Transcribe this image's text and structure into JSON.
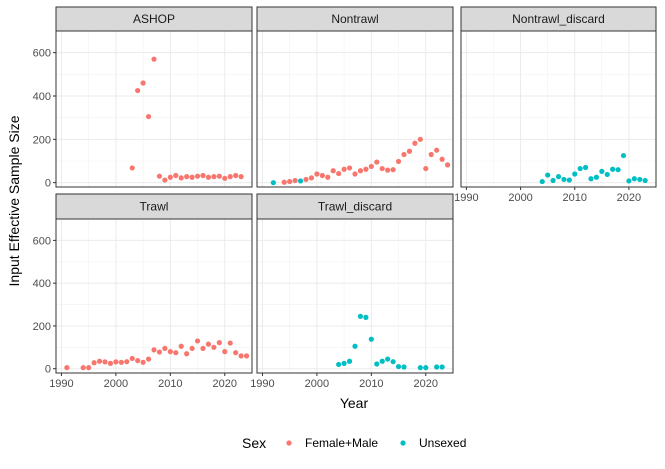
{
  "chart_data": {
    "type": "scatter",
    "xlabel": "Year",
    "ylabel": "Input Effective Sample Size",
    "xlim": [
      1989,
      2025
    ],
    "ylim": [
      -20,
      700
    ],
    "x_ticks": [
      1990,
      2000,
      2010,
      2020
    ],
    "y_ticks": [
      0,
      200,
      400,
      600
    ],
    "grid": true,
    "legend": {
      "title": "Sex",
      "position": "bottom",
      "entries": [
        {
          "name": "Female+Male",
          "color": "#F8766D"
        },
        {
          "name": "Unsexed",
          "color": "#00BFC4"
        }
      ]
    },
    "panels": [
      {
        "name": "ASHOP",
        "series": [
          {
            "name": "Female+Male",
            "points": [
              [
                2003,
                68
              ],
              [
                2004,
                425
              ],
              [
                2005,
                460
              ],
              [
                2006,
                305
              ],
              [
                2007,
                570
              ],
              [
                2008,
                30
              ],
              [
                2009,
                12
              ],
              [
                2010,
                25
              ],
              [
                2011,
                33
              ],
              [
                2012,
                22
              ],
              [
                2013,
                28
              ],
              [
                2014,
                25
              ],
              [
                2015,
                30
              ],
              [
                2016,
                33
              ],
              [
                2017,
                25
              ],
              [
                2018,
                28
              ],
              [
                2019,
                30
              ],
              [
                2020,
                20
              ],
              [
                2021,
                28
              ],
              [
                2022,
                33
              ],
              [
                2023,
                28
              ]
            ]
          }
        ]
      },
      {
        "name": "Nontrawl",
        "series": [
          {
            "name": "Female+Male",
            "points": [
              [
                1994,
                2
              ],
              [
                1995,
                5
              ],
              [
                1996,
                10
              ],
              [
                1998,
                15
              ],
              [
                1999,
                22
              ],
              [
                2000,
                40
              ],
              [
                2001,
                33
              ],
              [
                2002,
                25
              ],
              [
                2003,
                55
              ],
              [
                2004,
                42
              ],
              [
                2005,
                62
              ],
              [
                2006,
                68
              ],
              [
                2007,
                40
              ],
              [
                2008,
                55
              ],
              [
                2009,
                62
              ],
              [
                2010,
                75
              ],
              [
                2011,
                95
              ],
              [
                2012,
                65
              ],
              [
                2013,
                58
              ],
              [
                2014,
                60
              ],
              [
                2015,
                98
              ],
              [
                2016,
                130
              ],
              [
                2017,
                145
              ],
              [
                2018,
                182
              ],
              [
                2019,
                200
              ],
              [
                2020,
                65
              ],
              [
                2021,
                130
              ],
              [
                2022,
                150
              ],
              [
                2023,
                108
              ],
              [
                2024,
                82
              ]
            ]
          },
          {
            "name": "Unsexed",
            "points": [
              [
                1992,
                0
              ],
              [
                1997,
                8
              ]
            ]
          }
        ]
      },
      {
        "name": "Nontrawl_discard",
        "series": [
          {
            "name": "Unsexed",
            "points": [
              [
                2004,
                5
              ],
              [
                2005,
                35
              ],
              [
                2006,
                10
              ],
              [
                2007,
                28
              ],
              [
                2008,
                15
              ],
              [
                2009,
                12
              ],
              [
                2010,
                40
              ],
              [
                2011,
                65
              ],
              [
                2012,
                70
              ],
              [
                2013,
                18
              ],
              [
                2014,
                25
              ],
              [
                2015,
                52
              ],
              [
                2016,
                38
              ],
              [
                2017,
                62
              ],
              [
                2018,
                60
              ],
              [
                2019,
                125
              ],
              [
                2020,
                8
              ],
              [
                2021,
                18
              ],
              [
                2022,
                15
              ],
              [
                2023,
                10
              ]
            ]
          }
        ]
      },
      {
        "name": "Trawl",
        "series": [
          {
            "name": "Female+Male",
            "points": [
              [
                1991,
                5
              ],
              [
                1994,
                5
              ],
              [
                1995,
                5
              ],
              [
                1996,
                28
              ],
              [
                1997,
                35
              ],
              [
                1998,
                32
              ],
              [
                1999,
                25
              ],
              [
                2000,
                32
              ],
              [
                2001,
                30
              ],
              [
                2002,
                33
              ],
              [
                2003,
                48
              ],
              [
                2004,
                38
              ],
              [
                2005,
                30
              ],
              [
                2006,
                45
              ],
              [
                2007,
                88
              ],
              [
                2008,
                78
              ],
              [
                2009,
                95
              ],
              [
                2010,
                80
              ],
              [
                2011,
                75
              ],
              [
                2012,
                105
              ],
              [
                2013,
                70
              ],
              [
                2014,
                95
              ],
              [
                2015,
                130
              ],
              [
                2016,
                95
              ],
              [
                2017,
                115
              ],
              [
                2018,
                100
              ],
              [
                2019,
                122
              ],
              [
                2020,
                80
              ],
              [
                2021,
                120
              ],
              [
                2022,
                75
              ],
              [
                2023,
                60
              ],
              [
                2024,
                60
              ]
            ]
          }
        ]
      },
      {
        "name": "Trawl_discard",
        "series": [
          {
            "name": "Unsexed",
            "points": [
              [
                2004,
                20
              ],
              [
                2005,
                25
              ],
              [
                2006,
                35
              ],
              [
                2007,
                105
              ],
              [
                2008,
                245
              ],
              [
                2009,
                240
              ],
              [
                2010,
                138
              ],
              [
                2011,
                22
              ],
              [
                2012,
                35
              ],
              [
                2013,
                45
              ],
              [
                2014,
                33
              ],
              [
                2015,
                10
              ],
              [
                2016,
                8
              ],
              [
                2019,
                5
              ],
              [
                2020,
                5
              ],
              [
                2022,
                8
              ],
              [
                2023,
                8
              ]
            ]
          }
        ]
      }
    ]
  }
}
